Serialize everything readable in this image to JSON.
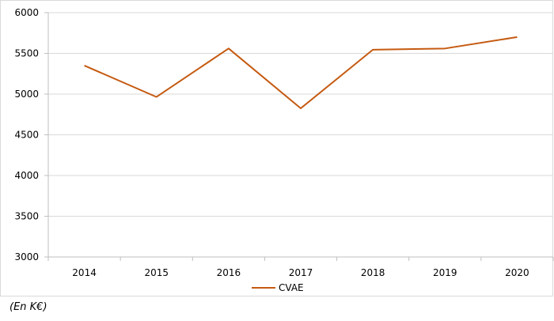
{
  "chart_data": {
    "type": "line",
    "categories": [
      "2014",
      "2015",
      "2016",
      "2017",
      "2018",
      "2019",
      "2020"
    ],
    "series": [
      {
        "name": "CVAE",
        "values": [
          5350,
          4965,
          5560,
          4825,
          5545,
          5560,
          5700
        ],
        "color": "#c55a11"
      }
    ],
    "yticks": [
      3000,
      3500,
      4000,
      4500,
      5000,
      5500,
      6000
    ],
    "ylim": [
      3000,
      6000
    ],
    "grid": true,
    "legend": "bottom"
  },
  "caption": "(En K€)"
}
